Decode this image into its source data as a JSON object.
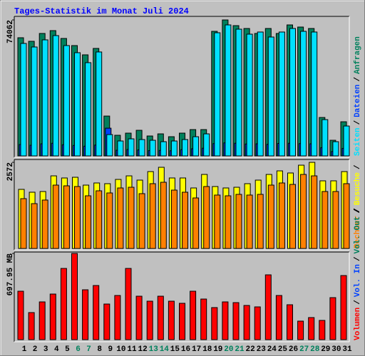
{
  "chart_data": [
    {
      "type": "bar",
      "title": "Tages-Statistik im Monat Juli 2024",
      "separator": "/",
      "ylim": [
        0,
        74062
      ],
      "yticks": [
        74062
      ],
      "series": [
        {
          "name": "Anfragen",
          "color": "#00805c",
          "values": [
            64370,
            62430,
            66700,
            68250,
            63980,
            60100,
            55060,
            58550,
            21710,
            11250,
            12410,
            13960,
            10860,
            12020,
            10470,
            12410,
            14350,
            14350,
            67860,
            74062,
            70960,
            69410,
            66700,
            69410,
            66700,
            71350,
            70190,
            69410,
            20940,
            8530,
            18610
          ]
        },
        {
          "name": "Dateien",
          "color": "#0040ff",
          "values": [
            6200,
            5800,
            6600,
            6900,
            6100,
            5700,
            5300,
            5900,
            15100,
            3100,
            3500,
            3300,
            2900,
            3000,
            2800,
            3400,
            3900,
            4200,
            6700,
            7100,
            6900,
            6500,
            6600,
            6300,
            6800,
            6900,
            6700,
            6600,
            4500,
            2400,
            4100
          ]
        },
        {
          "name": "Seiten",
          "color": "#00e0ff",
          "values": [
            61270,
            59330,
            63210,
            65540,
            60110,
            56230,
            50800,
            56620,
            11630,
            8140,
            9310,
            8920,
            8530,
            7760,
            8140,
            8920,
            10470,
            12020,
            67090,
            71350,
            69030,
            66310,
            67480,
            64760,
            67480,
            69420,
            67870,
            67480,
            19780,
            7760,
            16290
          ]
        }
      ]
    },
    {
      "type": "bar",
      "separator": "/",
      "ylim": [
        0,
        2572
      ],
      "yticks": [
        2572
      ],
      "series": [
        {
          "name": "Besuche",
          "color": "#ffff00",
          "values": [
            1765,
            1680,
            1701,
            2168,
            2105,
            2126,
            1892,
            1956,
            1935,
            2062,
            2168,
            2041,
            2296,
            2424,
            2105,
            2105,
            1807,
            2211,
            1850,
            1807,
            1828,
            1935,
            2041,
            2211,
            2317,
            2254,
            2487,
            2572,
            2020,
            2020,
            2296
          ]
        },
        {
          "name": "Rechner",
          "color": "#ff8000",
          "values": [
            1488,
            1339,
            1446,
            1892,
            1871,
            1850,
            1573,
            1722,
            1658,
            1807,
            1828,
            1637,
            1935,
            1977,
            1743,
            1680,
            1509,
            1850,
            1595,
            1573,
            1616,
            1595,
            1616,
            1892,
            1956,
            1913,
            2211,
            2168,
            1701,
            1701,
            1935
          ]
        }
      ]
    },
    {
      "type": "bar",
      "separator": "/",
      "ylim": [
        0,
        697.95
      ],
      "yticks": [
        {
          "value": 697.95,
          "label": "697.95 MB"
        }
      ],
      "categories": [
        "1",
        "2",
        "3",
        "4",
        "5",
        "6",
        "7",
        "8",
        "9",
        "10",
        "11",
        "12",
        "13",
        "14",
        "15",
        "16",
        "17",
        "18",
        "19",
        "20",
        "21",
        "22",
        "23",
        "24",
        "25",
        "26",
        "27",
        "28",
        "29",
        "30",
        "31"
      ],
      "category_colors": [
        "#000000",
        "#000000",
        "#000000",
        "#000000",
        "#000000",
        "#00805c",
        "#00805c",
        "#000000",
        "#000000",
        "#000000",
        "#000000",
        "#000000",
        "#00805c",
        "#00805c",
        "#000000",
        "#000000",
        "#000000",
        "#000000",
        "#000000",
        "#00805c",
        "#00805c",
        "#000000",
        "#000000",
        "#000000",
        "#000000",
        "#000000",
        "#00805c",
        "#00805c",
        "#000000",
        "#000000",
        "#000000"
      ],
      "series": [
        {
          "name": "Vol. Out",
          "color": "#00805c"
        },
        {
          "name": "Vol. In",
          "color": "#0040ff"
        },
        {
          "name": "Volumen",
          "color": "#ff0000",
          "values": [
            392.2,
            219.2,
            305.7,
            369.2,
            576.8,
            697.95,
            403.8,
            438.4,
            288.4,
            357.6,
            576.8,
            351.8,
            311.5,
            351.8,
            311.5,
            294.2,
            392.2,
            328.8,
            259.6,
            305.7,
            299.9,
            276.9,
            265.3,
            524.9,
            357.6,
            282.6,
            150.0,
            178.8,
            155.7,
            340.3,
            519.1
          ]
        }
      ]
    }
  ]
}
